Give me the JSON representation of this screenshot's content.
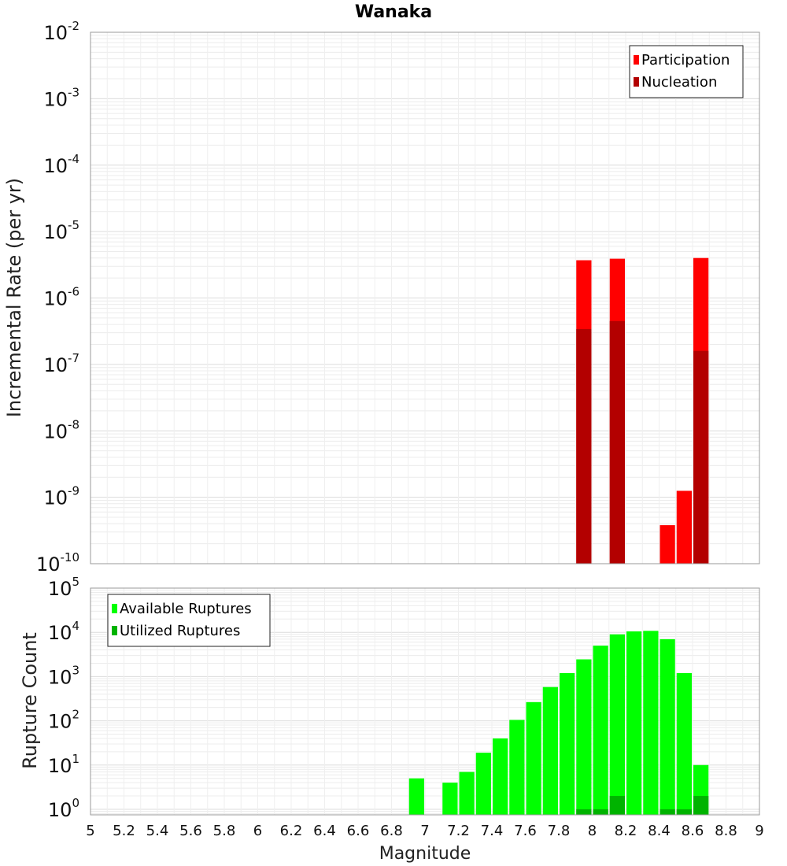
{
  "chart_data": [
    {
      "type": "bar",
      "title": "Wanaka",
      "xlabel": "",
      "ylabel": "Incremental Rate (per yr)",
      "yscale": "log",
      "ylim": [
        1e-10,
        0.01
      ],
      "xlim": [
        5,
        9
      ],
      "bin_width": 0.1,
      "legend_position": "top-right",
      "series": [
        {
          "name": "Participation",
          "color": "#ff0000",
          "points": [
            {
              "x": 7.95,
              "y": 3.7e-06
            },
            {
              "x": 8.15,
              "y": 3.9e-06
            },
            {
              "x": 8.45,
              "y": 3.8e-10
            },
            {
              "x": 8.55,
              "y": 1.25e-09
            },
            {
              "x": 8.65,
              "y": 4e-06
            }
          ]
        },
        {
          "name": "Nucleation",
          "color": "#b30000",
          "points": [
            {
              "x": 7.95,
              "y": 3.4e-07
            },
            {
              "x": 8.15,
              "y": 4.5e-07
            },
            {
              "x": 8.65,
              "y": 1.6e-07
            }
          ]
        }
      ]
    },
    {
      "type": "bar",
      "title": "",
      "xlabel": "Magnitude",
      "ylabel": "Rupture Count",
      "yscale": "log",
      "ylim": [
        0.75,
        100000
      ],
      "xlim": [
        5,
        9
      ],
      "bin_width": 0.1,
      "legend_position": "top-left",
      "xticks": [
        "5",
        "5.2",
        "5.4",
        "5.6",
        "5.8",
        "6",
        "6.2",
        "6.4",
        "6.6",
        "6.8",
        "7",
        "7.2",
        "7.4",
        "7.6",
        "7.8",
        "8",
        "8.2",
        "8.4",
        "8.6",
        "8.8",
        "9"
      ],
      "series": [
        {
          "name": "Available Ruptures",
          "color": "#00ff00",
          "points": [
            {
              "x": 6.95,
              "y": 5
            },
            {
              "x": 7.15,
              "y": 4
            },
            {
              "x": 7.25,
              "y": 7
            },
            {
              "x": 7.35,
              "y": 19
            },
            {
              "x": 7.45,
              "y": 40
            },
            {
              "x": 7.55,
              "y": 105
            },
            {
              "x": 7.65,
              "y": 265
            },
            {
              "x": 7.75,
              "y": 580
            },
            {
              "x": 7.85,
              "y": 1200
            },
            {
              "x": 7.95,
              "y": 2450
            },
            {
              "x": 8.05,
              "y": 5000
            },
            {
              "x": 8.15,
              "y": 9000
            },
            {
              "x": 8.25,
              "y": 10500
            },
            {
              "x": 8.35,
              "y": 10800
            },
            {
              "x": 8.45,
              "y": 7000
            },
            {
              "x": 8.55,
              "y": 1200
            },
            {
              "x": 8.65,
              "y": 10
            }
          ]
        },
        {
          "name": "Utilized Ruptures",
          "color": "#00b300",
          "points": [
            {
              "x": 7.95,
              "y": 1
            },
            {
              "x": 8.05,
              "y": 1
            },
            {
              "x": 8.15,
              "y": 2
            },
            {
              "x": 8.45,
              "y": 1
            },
            {
              "x": 8.55,
              "y": 1
            },
            {
              "x": 8.65,
              "y": 2
            }
          ]
        }
      ]
    }
  ]
}
